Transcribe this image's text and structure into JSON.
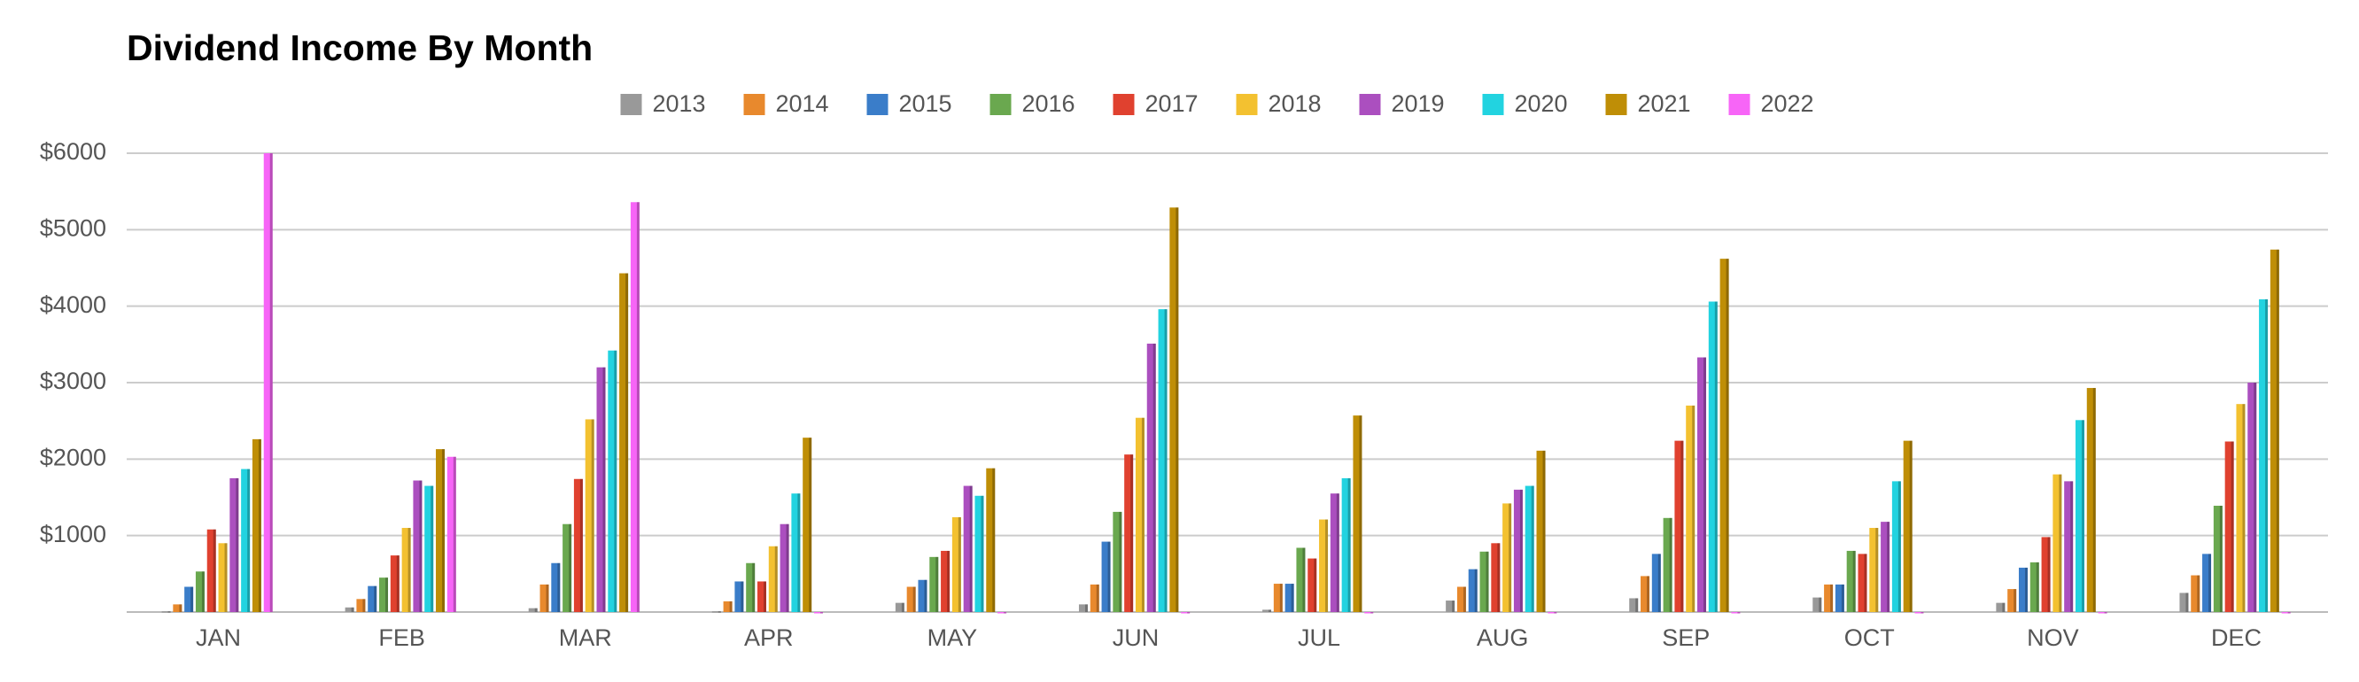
{
  "chart_data": {
    "type": "bar",
    "title": "Dividend Income By Month",
    "categories": [
      "JAN",
      "FEB",
      "MAR",
      "APR",
      "MAY",
      "JUN",
      "JUL",
      "AUG",
      "SEP",
      "OCT",
      "NOV",
      "DEC"
    ],
    "series": [
      {
        "name": "2013",
        "color": "#999999",
        "values": [
          10,
          60,
          50,
          10,
          120,
          100,
          30,
          150,
          180,
          190,
          120,
          250
        ]
      },
      {
        "name": "2014",
        "color": "#e8892d",
        "values": [
          100,
          170,
          360,
          140,
          330,
          360,
          370,
          330,
          470,
          360,
          300,
          480
        ]
      },
      {
        "name": "2015",
        "color": "#3a7dc9",
        "values": [
          330,
          340,
          640,
          400,
          420,
          920,
          370,
          560,
          760,
          360,
          580,
          760
        ]
      },
      {
        "name": "2016",
        "color": "#6aa84f",
        "values": [
          530,
          450,
          1150,
          640,
          720,
          1310,
          840,
          790,
          1230,
          800,
          650,
          1390
        ]
      },
      {
        "name": "2017",
        "color": "#e0412f",
        "values": [
          1080,
          740,
          1740,
          400,
          800,
          2060,
          700,
          900,
          2240,
          760,
          980,
          2230
        ]
      },
      {
        "name": "2018",
        "color": "#f3c130",
        "values": [
          900,
          1100,
          2520,
          860,
          1240,
          2540,
          1210,
          1420,
          2700,
          1100,
          1800,
          2720
        ]
      },
      {
        "name": "2019",
        "color": "#ab4fbf",
        "values": [
          1750,
          1720,
          3200,
          1150,
          1650,
          3510,
          1550,
          1600,
          3330,
          1180,
          1710,
          3000
        ]
      },
      {
        "name": "2020",
        "color": "#22d3e0",
        "values": [
          1870,
          1650,
          3420,
          1550,
          1520,
          3960,
          1750,
          1650,
          4060,
          1710,
          2510,
          4090
        ]
      },
      {
        "name": "2021",
        "color": "#bf8e06",
        "values": [
          2260,
          2130,
          4430,
          2280,
          1880,
          5290,
          2570,
          2110,
          4620,
          2240,
          2930,
          4740
        ]
      },
      {
        "name": "2022",
        "color": "#f765f7",
        "values": [
          6000,
          2030,
          5360,
          0,
          0,
          0,
          0,
          0,
          0,
          0,
          0,
          0
        ]
      }
    ],
    "ylim": [
      0,
      6000
    ],
    "yticks": [
      {
        "value": 1000,
        "label": "$1000"
      },
      {
        "value": 2000,
        "label": "$2000"
      },
      {
        "value": 3000,
        "label": "$3000"
      },
      {
        "value": 4000,
        "label": "$4000"
      },
      {
        "value": 5000,
        "label": "$5000"
      },
      {
        "value": 6000,
        "label": "$6000"
      }
    ],
    "grid": true
  }
}
